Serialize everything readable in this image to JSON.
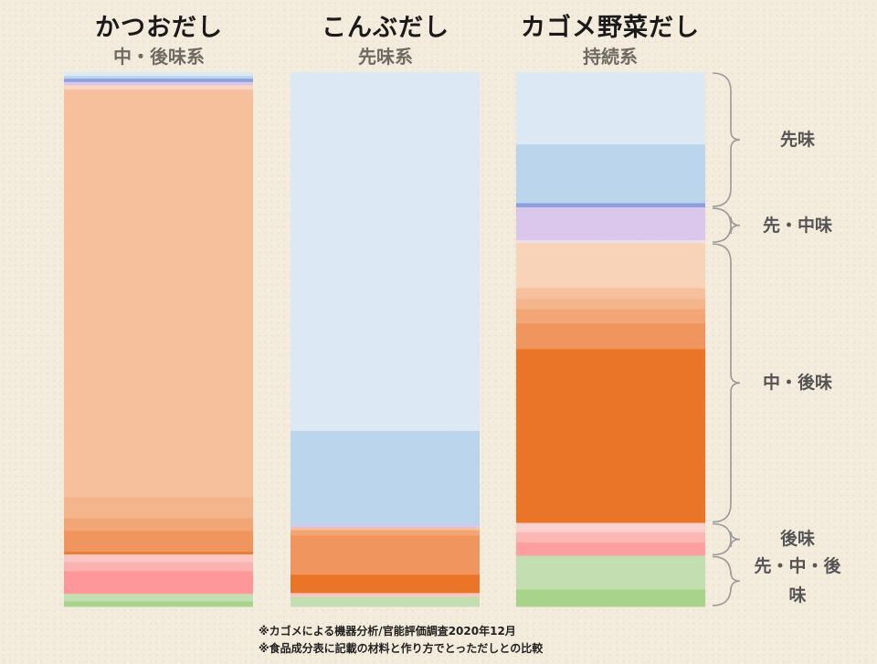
{
  "chart_data": {
    "type": "bar",
    "stacked": "100%",
    "columns": [
      {
        "title": "かつおだし",
        "subtitle": "中・後味系",
        "segments": [
          {
            "v": 0.7,
            "c": "#dde8f5"
          },
          {
            "v": 0.5,
            "c": "#bad5ec"
          },
          {
            "v": 0.6,
            "c": "#8ea0dc"
          },
          {
            "v": 0.6,
            "c": "#d8c6ec"
          },
          {
            "v": 0.8,
            "c": "#f9d7be"
          },
          {
            "v": 74.4,
            "c": "#f5c09b"
          },
          {
            "v": 3.8,
            "c": "#f4b58c"
          },
          {
            "v": 2.3,
            "c": "#f2a575"
          },
          {
            "v": 3.8,
            "c": "#f0955d"
          },
          {
            "v": 0.5,
            "c": "#ee7c36"
          },
          {
            "v": 1.4,
            "c": "#fcc6c3"
          },
          {
            "v": 1.7,
            "c": "#fcb2b0"
          },
          {
            "v": 4.1,
            "c": "#fd9799"
          },
          {
            "v": 1.4,
            "c": "#c3dfb1"
          },
          {
            "v": 0.9,
            "c": "#a8d38b"
          }
        ]
      },
      {
        "title": "こんぶだし",
        "subtitle": "先味系",
        "segments": [
          {
            "v": 66.8,
            "c": "#dde8f5"
          },
          {
            "v": 17.5,
            "c": "#bad5ec"
          },
          {
            "v": 0.5,
            "c": "#d8c6ec"
          },
          {
            "v": 0.5,
            "c": "#f5c09b"
          },
          {
            "v": 1.0,
            "c": "#f2a575"
          },
          {
            "v": 7.3,
            "c": "#f0955d"
          },
          {
            "v": 3.4,
            "c": "#ea7528"
          },
          {
            "v": 0.7,
            "c": "#fcc6c3"
          },
          {
            "v": 1.8,
            "c": "#c3dfb1"
          }
        ]
      },
      {
        "title": "カゴメ野菜だし",
        "subtitle": "持続系",
        "segments": [
          {
            "v": 15.4,
            "c": "#dde8f5"
          },
          {
            "v": 12.5,
            "c": "#bad5ec"
          },
          {
            "v": 0.9,
            "c": "#8ea0dc"
          },
          {
            "v": 7.0,
            "c": "#dcc7ec"
          },
          {
            "v": 0.6,
            "c": "#f0dfe8"
          },
          {
            "v": 9.6,
            "c": "#f8d3b8"
          },
          {
            "v": 2.3,
            "c": "#f5c09b"
          },
          {
            "v": 2.2,
            "c": "#f4b58c"
          },
          {
            "v": 3.0,
            "c": "#f2a575"
          },
          {
            "v": 5.5,
            "c": "#f0955d"
          },
          {
            "v": 37.0,
            "c": "#ea7528"
          },
          {
            "v": 2.0,
            "c": "#fcd0cc"
          },
          {
            "v": 2.2,
            "c": "#fcb6b3"
          },
          {
            "v": 2.8,
            "c": "#fd9fa1"
          },
          {
            "v": 7.2,
            "c": "#c3dfb1"
          },
          {
            "v": 3.6,
            "c": "#a8d38b"
          }
        ]
      }
    ],
    "groups": [
      {
        "label": "先味",
        "from": 0,
        "to": 28.8
      },
      {
        "label": "先・中味",
        "from": 28.8,
        "to": 36.4
      },
      {
        "label": "中・後味",
        "from": 36.4,
        "to": 96.0
      },
      {
        "label": "後味",
        "from": 96.0,
        "to": 103.0
      },
      {
        "label": "先・中・後味",
        "from": 103.0,
        "to": 113.8
      }
    ],
    "colors": {
      "blue_light": "#dde8f5",
      "blue": "#bad5ec",
      "purple": "#dcc7ec",
      "orange_light": "#f5c09b",
      "orange": "#ea7528",
      "pink": "#fd9799",
      "green": "#c3dfb1",
      "bracket": "#9b9b9b"
    }
  },
  "footnotes": [
    "※カゴメによる機器分析/官能評価調査2020年12月",
    "※食品成分表に記載の材料と作り方でとっただしとの比較"
  ]
}
